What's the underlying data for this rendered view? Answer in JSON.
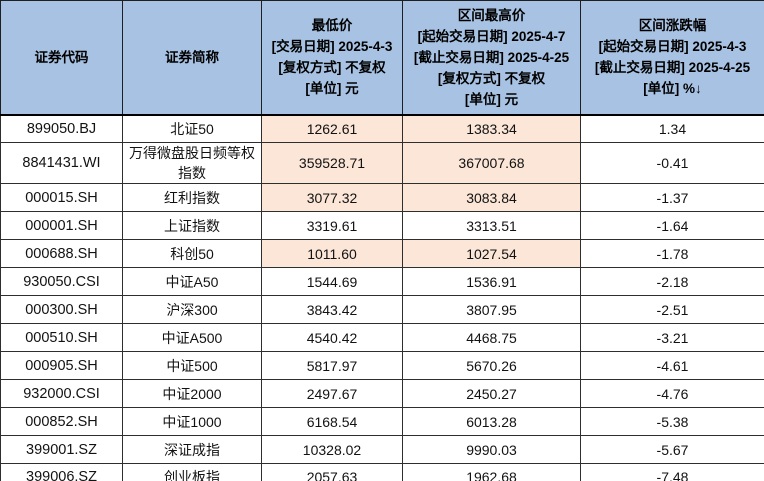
{
  "table": {
    "headers": {
      "code": "证券代码",
      "name": "证券简称",
      "low": [
        "最低价",
        "[交易日期] 2025-4-3",
        "[复权方式] 不复权",
        "[单位] 元"
      ],
      "high": [
        "区间最高价",
        "[起始交易日期] 2025-4-7",
        "[截止交易日期] 2025-4-25",
        "[复权方式] 不复权",
        "[单位] 元"
      ],
      "pct": [
        "区间涨跌幅",
        "[起始交易日期] 2025-4-3",
        "[截止交易日期] 2025-4-25",
        "[单位] %↓"
      ]
    },
    "sort_indicator": "↓",
    "rows": [
      {
        "code": "899050.BJ",
        "name": "北证50",
        "low": "1262.61",
        "high": "1383.34",
        "pct": "1.34",
        "highlight": true
      },
      {
        "code": "8841431.WI",
        "name": "万得微盘股日频等权指数",
        "low": "359528.71",
        "high": "367007.68",
        "pct": "-0.41",
        "highlight": true
      },
      {
        "code": "000015.SH",
        "name": "红利指数",
        "low": "3077.32",
        "high": "3083.84",
        "pct": "-1.37",
        "highlight": true
      },
      {
        "code": "000001.SH",
        "name": "上证指数",
        "low": "3319.61",
        "high": "3313.51",
        "pct": "-1.64",
        "highlight": false
      },
      {
        "code": "000688.SH",
        "name": "科创50",
        "low": "1011.60",
        "high": "1027.54",
        "pct": "-1.78",
        "highlight": true
      },
      {
        "code": "930050.CSI",
        "name": "中证A50",
        "low": "1544.69",
        "high": "1536.91",
        "pct": "-2.18",
        "highlight": false
      },
      {
        "code": "000300.SH",
        "name": "沪深300",
        "low": "3843.42",
        "high": "3807.95",
        "pct": "-2.51",
        "highlight": false
      },
      {
        "code": "000510.SH",
        "name": "中证A500",
        "low": "4540.42",
        "high": "4468.75",
        "pct": "-3.21",
        "highlight": false
      },
      {
        "code": "000905.SH",
        "name": "中证500",
        "low": "5817.97",
        "high": "5670.26",
        "pct": "-4.61",
        "highlight": false
      },
      {
        "code": "932000.CSI",
        "name": "中证2000",
        "low": "2497.67",
        "high": "2450.27",
        "pct": "-4.76",
        "highlight": false
      },
      {
        "code": "000852.SH",
        "name": "中证1000",
        "low": "6168.54",
        "high": "6013.28",
        "pct": "-5.38",
        "highlight": false
      },
      {
        "code": "399001.SZ",
        "name": "深证成指",
        "low": "10328.02",
        "high": "9990.03",
        "pct": "-5.67",
        "highlight": false
      },
      {
        "code": "399006.SZ",
        "name": "创业板指",
        "low": "2057.63",
        "high": "1962.68",
        "pct": "-7.48",
        "highlight": false
      }
    ]
  },
  "colors": {
    "header_bg": "#A7C2E2",
    "highlight_bg": "#FBE6D7",
    "row_bg": "#FFFFFF",
    "border": "#2E2E2E",
    "thick_border": "#000000",
    "text": "#000000"
  }
}
